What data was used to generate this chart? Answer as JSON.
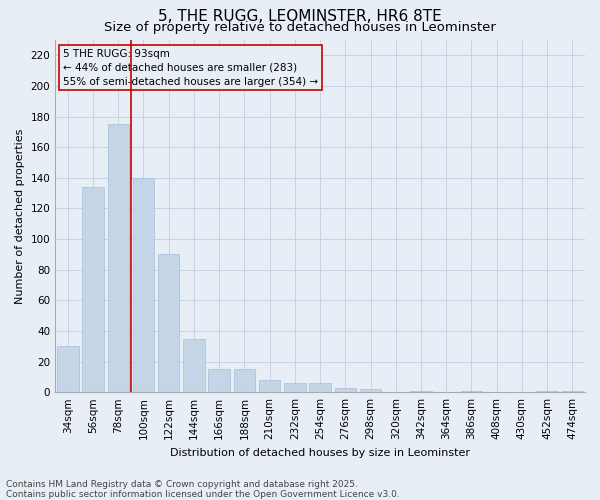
{
  "title": "5, THE RUGG, LEOMINSTER, HR6 8TE",
  "subtitle": "Size of property relative to detached houses in Leominster",
  "xlabel": "Distribution of detached houses by size in Leominster",
  "ylabel": "Number of detached properties",
  "categories": [
    "34sqm",
    "56sqm",
    "78sqm",
    "100sqm",
    "122sqm",
    "144sqm",
    "166sqm",
    "188sqm",
    "210sqm",
    "232sqm",
    "254sqm",
    "276sqm",
    "298sqm",
    "320sqm",
    "342sqm",
    "364sqm",
    "386sqm",
    "408sqm",
    "430sqm",
    "452sqm",
    "474sqm"
  ],
  "values": [
    30,
    134,
    175,
    140,
    90,
    35,
    15,
    15,
    8,
    6,
    6,
    3,
    2,
    0,
    1,
    0,
    1,
    0,
    0,
    1,
    1
  ],
  "bar_color": "#c5d5e8",
  "bar_edgecolor": "#a8bedb",
  "grid_color": "#c8d4e6",
  "background_color": "#e8eef6",
  "vline_x": 2.5,
  "vline_color": "#cc0000",
  "annotation_text": "5 THE RUGG: 93sqm\n← 44% of detached houses are smaller (283)\n55% of semi-detached houses are larger (354) →",
  "annotation_box_color": "#cc0000",
  "ylim": [
    0,
    230
  ],
  "yticks": [
    0,
    20,
    40,
    60,
    80,
    100,
    120,
    140,
    160,
    180,
    200,
    220
  ],
  "footer_line1": "Contains HM Land Registry data © Crown copyright and database right 2025.",
  "footer_line2": "Contains public sector information licensed under the Open Government Licence v3.0.",
  "title_fontsize": 11,
  "subtitle_fontsize": 9.5,
  "label_fontsize": 8,
  "tick_fontsize": 7.5,
  "footer_fontsize": 6.5,
  "ann_fontsize": 7.5
}
